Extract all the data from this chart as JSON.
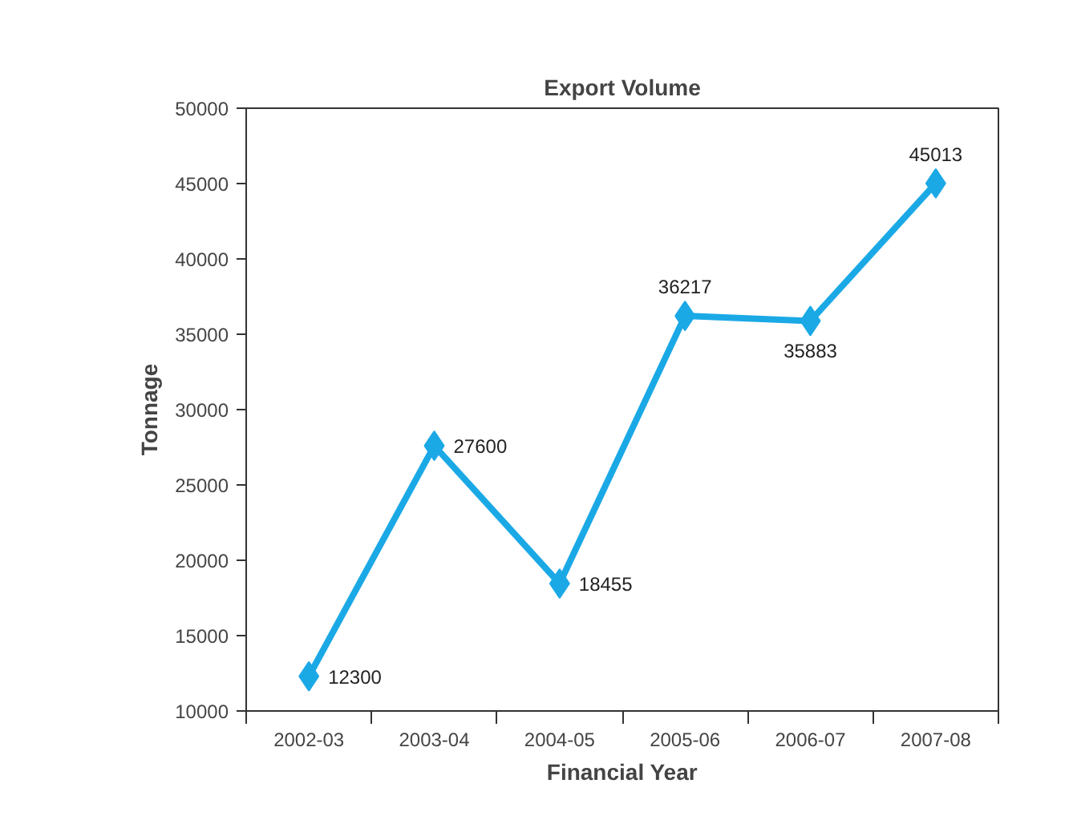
{
  "chart_data": {
    "type": "line",
    "title": "Export Volume",
    "xlabel": "Financial Year",
    "ylabel": "Tonnage",
    "categories": [
      "2002-03",
      "2003-04",
      "2004-05",
      "2005-06",
      "2006-07",
      "2007-08"
    ],
    "series": [
      {
        "color": "#1ba9e6",
        "values": [
          12300,
          27600,
          18455,
          36217,
          35883,
          45013
        ]
      }
    ],
    "ylim": [
      10000,
      50000
    ],
    "yticks": [
      10000,
      15000,
      20000,
      25000,
      30000,
      35000,
      40000,
      45000,
      50000
    ],
    "data_labels": true,
    "marker": "diamond",
    "line_style": "solid"
  }
}
